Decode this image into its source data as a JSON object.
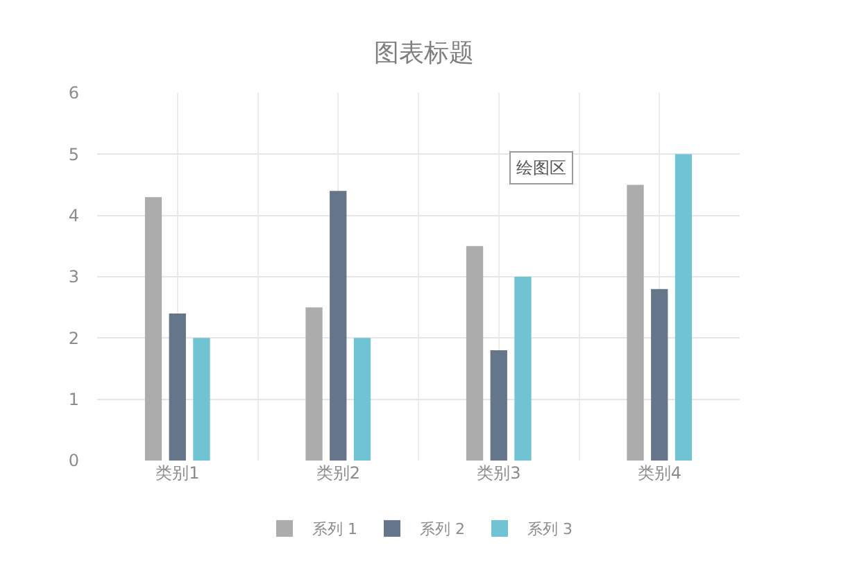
{
  "chart_data": {
    "type": "bar",
    "title": "图表标题",
    "categories": [
      "类别1",
      "类别2",
      "类别3",
      "类别4"
    ],
    "series": [
      {
        "name": "系列 1",
        "color": "#acacac",
        "values": [
          4.3,
          2.5,
          3.5,
          4.5
        ]
      },
      {
        "name": "系列 2",
        "color": "#66768a",
        "values": [
          2.4,
          4.4,
          1.8,
          2.8
        ]
      },
      {
        "name": "系列 3",
        "color": "#6fc3d2",
        "values": [
          2,
          2,
          3,
          5
        ]
      }
    ],
    "ylim": [
      0,
      6
    ],
    "yticks": [
      0,
      1,
      2,
      3,
      4,
      5,
      6
    ],
    "grid": true,
    "legend": "bottom",
    "annotations": [
      "绘图区"
    ]
  }
}
